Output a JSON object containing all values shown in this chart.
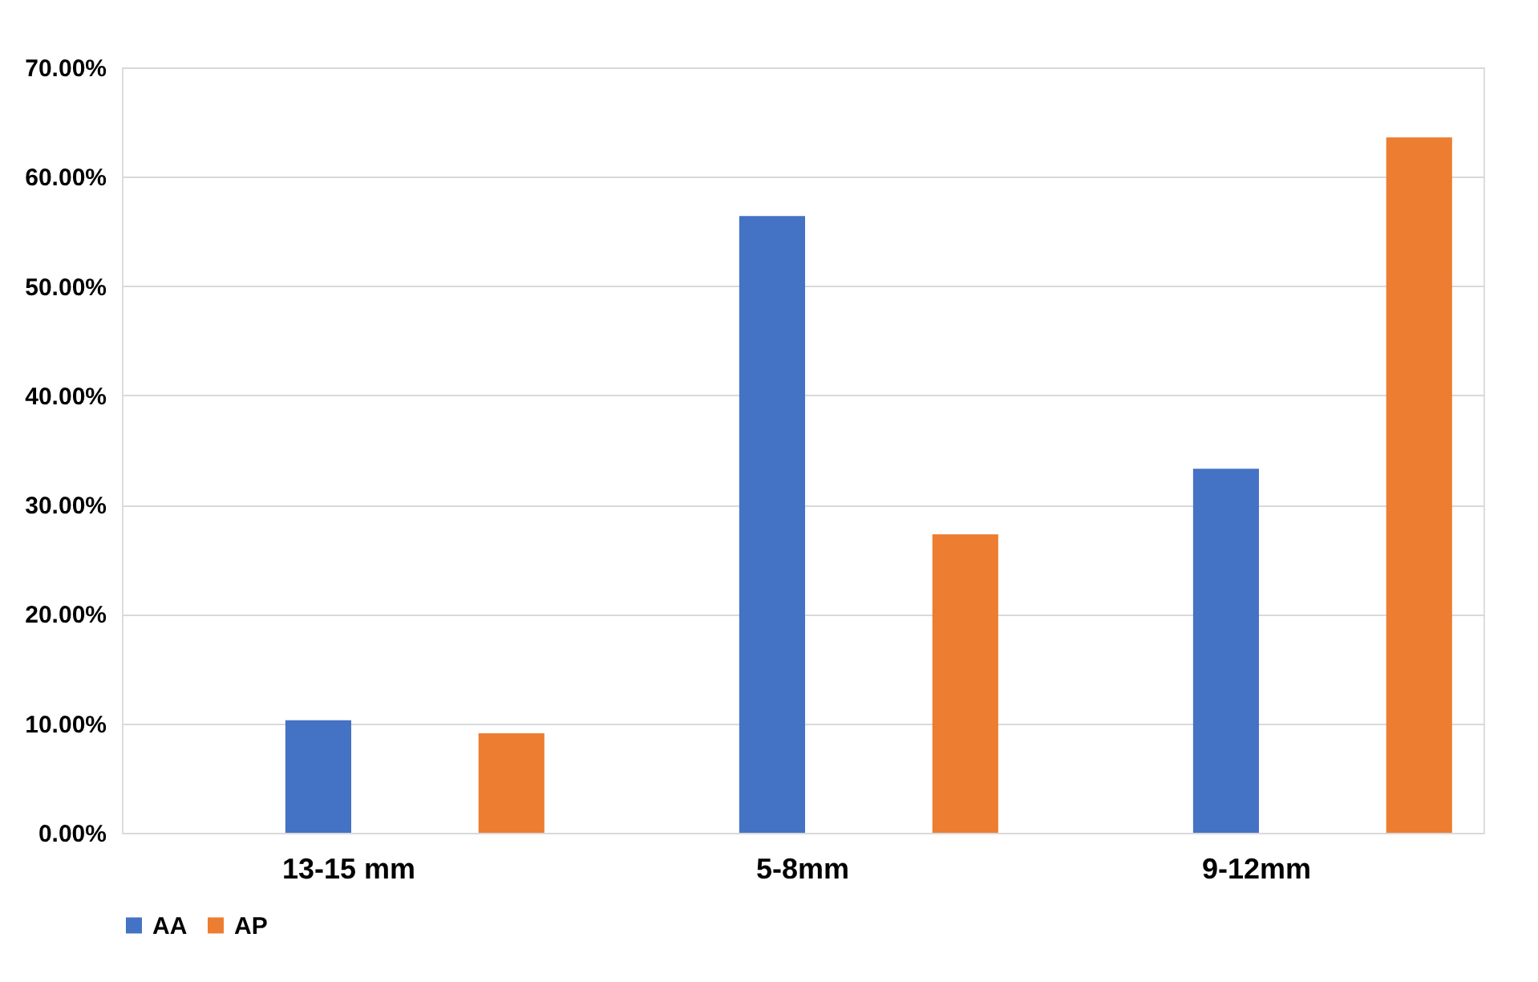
{
  "chart_data": {
    "type": "bar",
    "categories": [
      "13-15 mm",
      "5-8mm",
      "9-12mm"
    ],
    "series": [
      {
        "name": "AA",
        "color": "#4472c4",
        "values": [
          10.3,
          56.4,
          33.3
        ]
      },
      {
        "name": "AP",
        "color": "#ed7d31",
        "values": [
          9.1,
          27.3,
          63.6
        ]
      }
    ],
    "ylim": [
      0,
      70
    ],
    "yticks": [
      {
        "value": 0,
        "label": "0.00%"
      },
      {
        "value": 10,
        "label": "10.00%"
      },
      {
        "value": 20,
        "label": "20.00%"
      },
      {
        "value": 30,
        "label": "30.00%"
      },
      {
        "value": 40,
        "label": "40.00%"
      },
      {
        "value": 50,
        "label": "50.00%"
      },
      {
        "value": 60,
        "label": "60.00%"
      },
      {
        "value": 70,
        "label": "70.00%"
      }
    ],
    "grid": "y",
    "legend": "bottom"
  }
}
